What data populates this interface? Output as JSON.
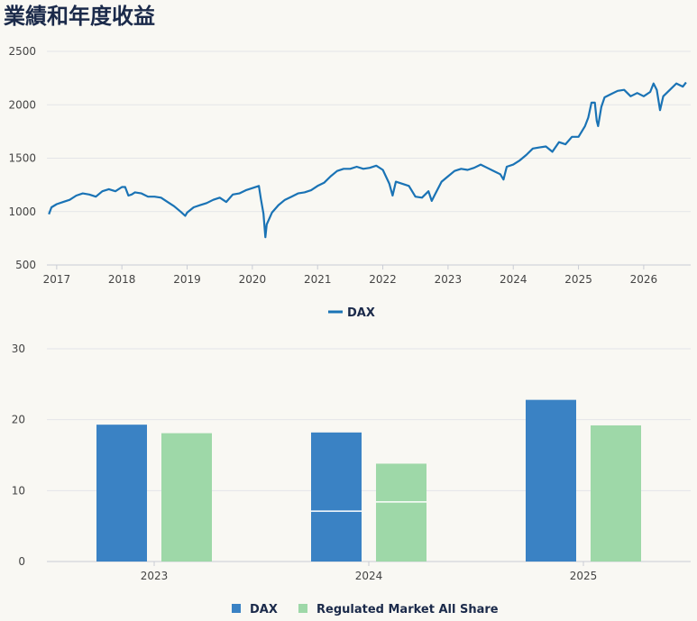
{
  "page": {
    "title": "業績和年度收益"
  },
  "chart_data": [
    {
      "type": "line",
      "title": "",
      "xlabel": "",
      "ylabel": "",
      "ylim": [
        500,
        2500
      ],
      "yticks": [
        500,
        1000,
        1500,
        2000,
        2500
      ],
      "xlim": [
        2016.85,
        2026.72
      ],
      "xticks": [
        "2017",
        "2018",
        "2019",
        "2020",
        "2021",
        "2022",
        "2023",
        "2024",
        "2025",
        "2026"
      ],
      "grid": true,
      "legend": "bottom",
      "color": "#1a73b5",
      "series": [
        {
          "name": "DAX",
          "x": [
            2016.88,
            2016.92,
            2017.0,
            2017.1,
            2017.2,
            2017.3,
            2017.4,
            2017.5,
            2017.6,
            2017.7,
            2017.8,
            2017.9,
            2018.0,
            2018.05,
            2018.1,
            2018.15,
            2018.2,
            2018.3,
            2018.4,
            2018.5,
            2018.6,
            2018.7,
            2018.8,
            2018.9,
            2018.97,
            2019.0,
            2019.1,
            2019.2,
            2019.3,
            2019.4,
            2019.5,
            2019.6,
            2019.7,
            2019.8,
            2019.9,
            2020.0,
            2020.1,
            2020.13,
            2020.17,
            2020.2,
            2020.22,
            2020.3,
            2020.4,
            2020.5,
            2020.6,
            2020.7,
            2020.8,
            2020.9,
            2021.0,
            2021.1,
            2021.2,
            2021.3,
            2021.4,
            2021.5,
            2021.6,
            2021.7,
            2021.8,
            2021.9,
            2022.0,
            2022.1,
            2022.15,
            2022.2,
            2022.3,
            2022.4,
            2022.5,
            2022.6,
            2022.7,
            2022.75,
            2022.8,
            2022.9,
            2023.0,
            2023.1,
            2023.2,
            2023.3,
            2023.4,
            2023.5,
            2023.6,
            2023.7,
            2023.8,
            2023.85,
            2023.9,
            2024.0,
            2024.1,
            2024.2,
            2024.3,
            2024.4,
            2024.5,
            2024.6,
            2024.7,
            2024.8,
            2024.9,
            2025.0,
            2025.1,
            2025.15,
            2025.2,
            2025.25,
            2025.28,
            2025.3,
            2025.35,
            2025.4,
            2025.5,
            2025.6,
            2025.7,
            2025.8,
            2025.9,
            2026.0,
            2026.1,
            2026.15,
            2026.2,
            2026.25,
            2026.3,
            2026.4,
            2026.5,
            2026.6,
            2026.65
          ],
          "y": [
            975,
            1040,
            1070,
            1090,
            1110,
            1150,
            1170,
            1160,
            1140,
            1190,
            1210,
            1190,
            1230,
            1230,
            1150,
            1160,
            1180,
            1170,
            1140,
            1140,
            1130,
            1090,
            1050,
            1000,
            960,
            990,
            1040,
            1060,
            1080,
            1110,
            1130,
            1090,
            1160,
            1170,
            1200,
            1220,
            1240,
            1120,
            980,
            760,
            880,
            990,
            1060,
            1110,
            1140,
            1170,
            1180,
            1200,
            1240,
            1270,
            1330,
            1380,
            1400,
            1400,
            1420,
            1400,
            1410,
            1430,
            1390,
            1260,
            1150,
            1280,
            1260,
            1240,
            1140,
            1130,
            1190,
            1100,
            1160,
            1280,
            1330,
            1380,
            1400,
            1390,
            1410,
            1440,
            1410,
            1380,
            1350,
            1300,
            1420,
            1440,
            1480,
            1530,
            1590,
            1600,
            1610,
            1560,
            1650,
            1630,
            1700,
            1700,
            1800,
            1880,
            2020,
            2020,
            1850,
            1800,
            1980,
            2070,
            2100,
            2130,
            2140,
            2080,
            2110,
            2080,
            2120,
            2200,
            2140,
            1950,
            2080,
            2140,
            2200,
            2170,
            2210
          ]
        }
      ],
      "legend_entries": [
        "DAX"
      ]
    },
    {
      "type": "bar",
      "title": "",
      "xlabel": "",
      "ylabel": "",
      "ylim": [
        0,
        30
      ],
      "yticks": [
        0,
        10,
        20,
        30
      ],
      "categories": [
        "2023",
        "2024",
        "2025"
      ],
      "grid": true,
      "legend": "bottom",
      "series": [
        {
          "name": "DAX",
          "color": "#3a82c4",
          "values": [
            19.3,
            18.2,
            22.8
          ],
          "inner_marks": [
            null,
            7.1,
            null
          ]
        },
        {
          "name": "Regulated Market All Share",
          "color": "#9ed8a8",
          "values": [
            18.1,
            13.8,
            19.2
          ],
          "inner_marks": [
            null,
            8.4,
            null
          ]
        }
      ]
    }
  ]
}
